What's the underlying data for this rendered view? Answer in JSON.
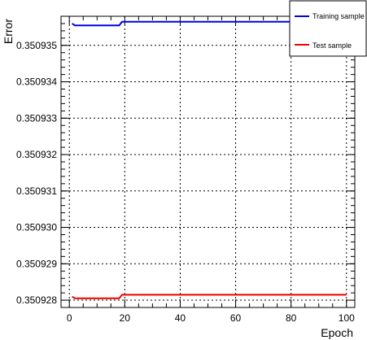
{
  "chart_data": {
    "type": "line",
    "xlabel": "Epoch",
    "ylabel": "Error",
    "xlim": [
      -3,
      103
    ],
    "ylim": [
      0.3509278,
      0.3509358
    ],
    "x_ticks": [
      0,
      20,
      40,
      60,
      80,
      100
    ],
    "x_tick_labels": [
      "0",
      "20",
      "40",
      "60",
      "80",
      "100"
    ],
    "y_ticks": [
      0.350928,
      0.350929,
      0.35093,
      0.350931,
      0.350932,
      0.350933,
      0.350934,
      0.350935
    ],
    "y_tick_labels": [
      "0.350928",
      "0.350929",
      "0.350930",
      "0.350931",
      "0.350932",
      "0.350933",
      "0.350934",
      "0.350935"
    ],
    "grid": true,
    "legend_placement": "top-right",
    "series": [
      {
        "name": "Training sample",
        "color": "#0000ee",
        "x": [
          1,
          2,
          17,
          18,
          19,
          100
        ],
        "y": [
          0.3509356,
          0.35093555,
          0.35093555,
          0.35093555,
          0.35093565,
          0.35093565
        ]
      },
      {
        "name": "Test sample",
        "color": "#ee0000",
        "x": [
          1,
          2,
          17,
          18,
          19,
          100
        ],
        "y": [
          0.3509281,
          0.35092805,
          0.35092805,
          0.35092805,
          0.35092815,
          0.35092815
        ]
      }
    ]
  }
}
